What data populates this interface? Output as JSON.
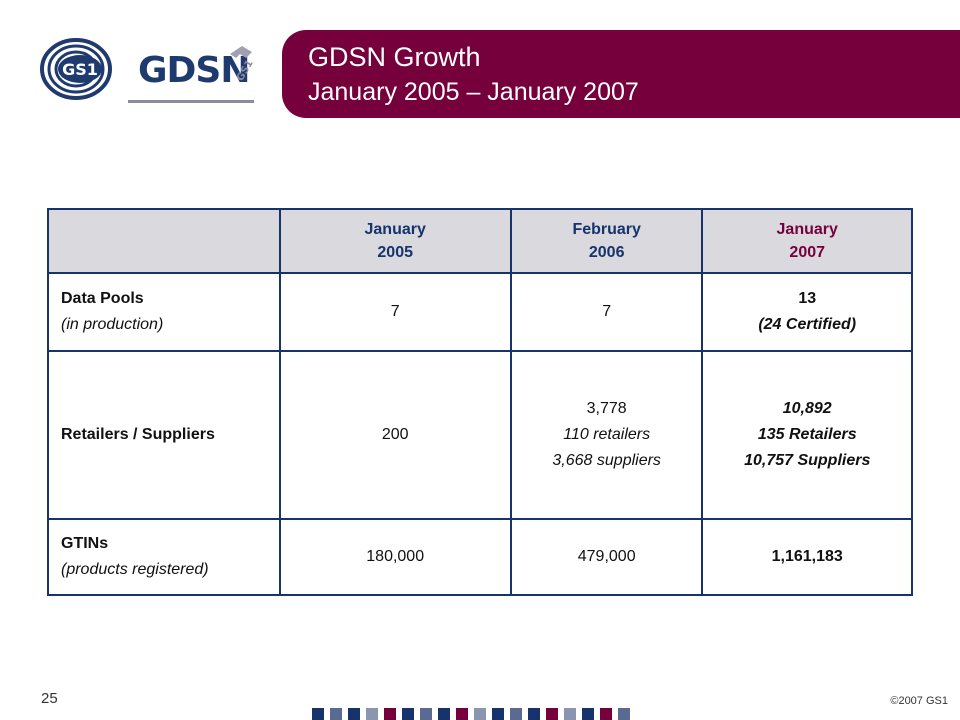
{
  "logo": {
    "gs1_text": "GS1",
    "gdsn_text": "GDSN",
    "badge_text": "GS1"
  },
  "title": {
    "main": "GDSN Growth",
    "sub": "January 2005 – January 2007"
  },
  "table": {
    "headers": [
      {
        "line1": "",
        "line2": ""
      },
      {
        "line1": "January",
        "line2": "2005"
      },
      {
        "line1": "February",
        "line2": "2006"
      },
      {
        "line1": "January",
        "line2": "2007"
      }
    ],
    "rows": [
      {
        "label": "Data Pools",
        "sublabel": "(in production)",
        "c1": [
          "7"
        ],
        "c2": [
          "7"
        ],
        "c3": [
          "13",
          "(24 Certified)"
        ]
      },
      {
        "label": "Retailers / Suppliers",
        "sublabel": "",
        "c1": [
          "200"
        ],
        "c2": [
          "3,778",
          "110 retailers",
          "3,668 suppliers"
        ],
        "c3": [
          "10,892",
          "135 Retailers",
          "10,757 Suppliers"
        ]
      },
      {
        "label": "GTINs",
        "sublabel": "(products registered)",
        "c1": [
          "180,000"
        ],
        "c2": [
          "479,000"
        ],
        "c3": [
          "1,161,183"
        ]
      }
    ]
  },
  "footer": {
    "slide_number": "25",
    "copyright": "©2007 GS1"
  },
  "colors": {
    "brand_maroon": "#75003b",
    "brand_navy": "#16336b",
    "header_bg": "#d9d9de"
  }
}
